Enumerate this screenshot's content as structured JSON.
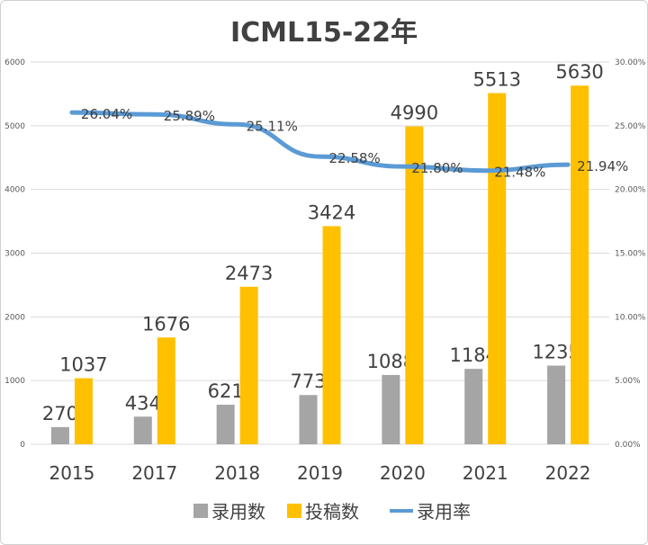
{
  "chart_data": {
    "type": "bar",
    "title": "ICML15-22年",
    "categories": [
      "2015",
      "2017",
      "2018",
      "2019",
      "2020",
      "2021",
      "2022"
    ],
    "series": [
      {
        "name": "录用数",
        "type": "bar",
        "axis": "left",
        "color": "#a5a5a5",
        "values": [
          270,
          434,
          621,
          773,
          1088,
          1184,
          1235
        ]
      },
      {
        "name": "投稿数",
        "type": "bar",
        "axis": "left",
        "color": "#ffc000",
        "values": [
          1037,
          1676,
          2473,
          3424,
          4990,
          5513,
          5630
        ]
      },
      {
        "name": "录用率",
        "type": "line",
        "axis": "right",
        "color": "#5b9bd5",
        "values": [
          26.04,
          25.89,
          25.11,
          22.58,
          21.8,
          21.48,
          21.94
        ],
        "labels": [
          "26.04%",
          "25.89%",
          "25.11%",
          "22.58%",
          "21.80%",
          "21.48%",
          "21.94%"
        ]
      }
    ],
    "y_left": {
      "range": [
        0,
        6000
      ],
      "ticks": [
        "0",
        "1000",
        "2000",
        "3000",
        "4000",
        "5000",
        "6000"
      ]
    },
    "y_right": {
      "range": [
        0,
        30
      ],
      "ticks": [
        "0.00%",
        "5.00%",
        "10.00%",
        "15.00%",
        "20.00%",
        "25.00%",
        "30.00%"
      ]
    },
    "grid": true,
    "legend": "bottom"
  }
}
